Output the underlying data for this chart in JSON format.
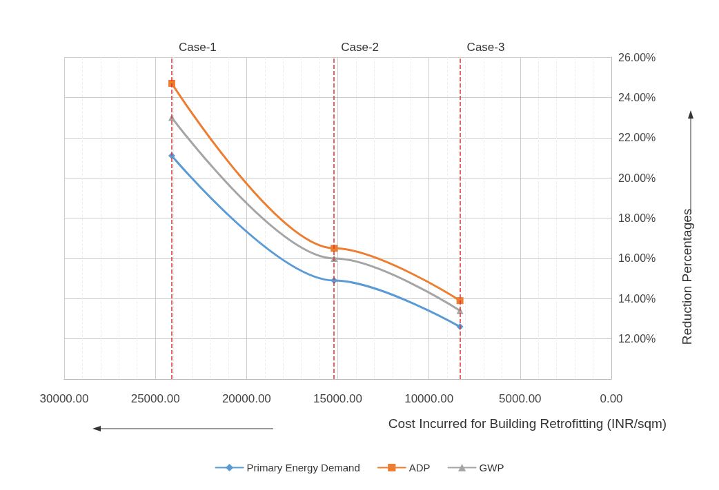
{
  "chart_data": {
    "type": "line",
    "xlabel": "Cost Incurred for Building Retrofitting (INR/sqm)",
    "ylabel": "Reduction Percentages",
    "x": [
      24100,
      15200,
      8300
    ],
    "series": [
      {
        "name": "Primary Energy Demand",
        "color": "#5b9bd5",
        "marker": "diamond",
        "values": [
          21.1,
          14.9,
          12.6
        ]
      },
      {
        "name": "ADP",
        "color": "#ed7d31",
        "marker": "square",
        "values": [
          24.7,
          16.5,
          13.9
        ]
      },
      {
        "name": "GWP",
        "color": "#a5a5a5",
        "marker": "triangle",
        "values": [
          23.0,
          16.0,
          13.4
        ]
      }
    ],
    "xlim": [
      30000,
      0
    ],
    "xticks": [
      {
        "value": 30000,
        "label": "30000.00"
      },
      {
        "value": 25000,
        "label": "25000.00"
      },
      {
        "value": 20000,
        "label": "20000.00"
      },
      {
        "value": 15000,
        "label": "15000.00"
      },
      {
        "value": 10000,
        "label": "10000.00"
      },
      {
        "value": 5000,
        "label": "5000.00"
      },
      {
        "value": 0,
        "label": "0.00"
      }
    ],
    "ylim": [
      10,
      26
    ],
    "yticks": [
      {
        "value": 12,
        "label": "12.00%"
      },
      {
        "value": 14,
        "label": "14.00%"
      },
      {
        "value": 16,
        "label": "16.00%"
      },
      {
        "value": 18,
        "label": "18.00%"
      },
      {
        "value": 20,
        "label": "20.00%"
      },
      {
        "value": 22,
        "label": "22.00%"
      },
      {
        "value": 24,
        "label": "24.00%"
      },
      {
        "value": 26,
        "label": "26.00%"
      }
    ],
    "ref_lines": [
      {
        "axis": "x",
        "value": 24100,
        "label": "Case-1",
        "color": "#e03030",
        "line_style": "dashed"
      },
      {
        "axis": "x",
        "value": 15200,
        "label": "Case-2",
        "color": "#e03030",
        "line_style": "dashed"
      },
      {
        "axis": "x",
        "value": 8300,
        "label": "Case-3",
        "color": "#e03030",
        "line_style": "dashed"
      }
    ],
    "grid": true,
    "legend": "bottom",
    "line_style": "solid"
  }
}
